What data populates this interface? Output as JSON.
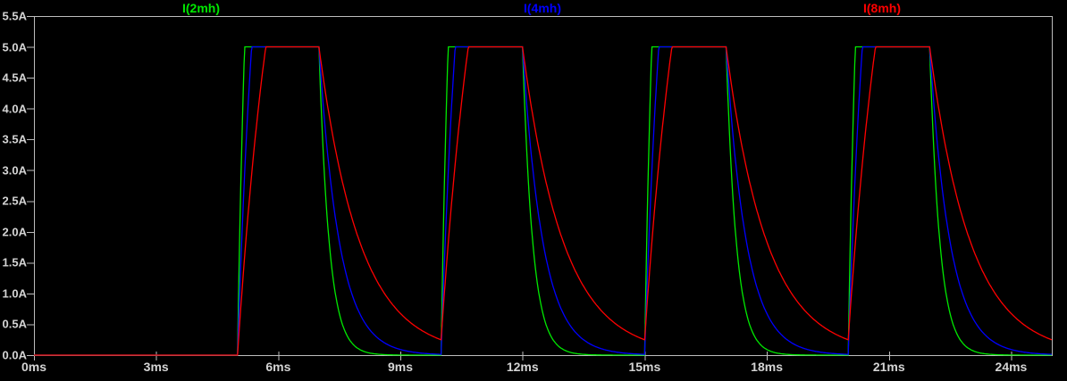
{
  "window": {
    "background": "#000000"
  },
  "legend": {
    "items": [
      {
        "label": "I(2mh)",
        "color": "#00e800",
        "x_center": 225
      },
      {
        "label": "I(4mh)",
        "color": "#0000ff",
        "x_center": 607
      },
      {
        "label": "I(8mh)",
        "color": "#ff0000",
        "x_center": 987
      }
    ]
  },
  "axes": {
    "frame_color": "#bcbcbc",
    "tick_color": "#bcbcbc",
    "label_color": "#d4d4d4",
    "x_unit": "ms",
    "y_unit": "A",
    "x_ticks": [
      {
        "value": 0,
        "label": "0ms"
      },
      {
        "value": 3,
        "label": "3ms"
      },
      {
        "value": 6,
        "label": "6ms"
      },
      {
        "value": 9,
        "label": "9ms"
      },
      {
        "value": 12,
        "label": "12ms"
      },
      {
        "value": 15,
        "label": "15ms"
      },
      {
        "value": 18,
        "label": "18ms"
      },
      {
        "value": 21,
        "label": "21ms"
      },
      {
        "value": 24,
        "label": "24ms"
      }
    ],
    "y_ticks": [
      {
        "value": 0.0,
        "label": "0.0A"
      },
      {
        "value": 0.5,
        "label": "0.5A"
      },
      {
        "value": 1.0,
        "label": "1.0A"
      },
      {
        "value": 1.5,
        "label": "1.5A"
      },
      {
        "value": 2.0,
        "label": "2.0A"
      },
      {
        "value": 2.5,
        "label": "2.5A"
      },
      {
        "value": 3.0,
        "label": "3.0A"
      },
      {
        "value": 3.5,
        "label": "3.5A"
      },
      {
        "value": 4.0,
        "label": "4.0A"
      },
      {
        "value": 4.5,
        "label": "4.5A"
      },
      {
        "value": 5.0,
        "label": "5.0A"
      },
      {
        "value": 5.5,
        "label": "5.5A"
      }
    ]
  },
  "chart_data": {
    "type": "line",
    "title": "",
    "xlabel": "",
    "ylabel": "",
    "xlim": [
      0,
      25
    ],
    "ylim": [
      0,
      5.5
    ],
    "grid": false,
    "legend_position": "top",
    "waveform_model": {
      "description": "Periodic pulsed inductor currents: off at 0A until first pulse; during ON the current rises exponentially toward rise_target_A with time constant tau and clamps at amplitude_A; during OFF it decays exponentially to 0 with the same tau.",
      "amplitude_A": 5.0,
      "rise_target_A": 10.0,
      "pulse_on_ms": [
        5,
        10,
        15,
        20
      ],
      "pulse_off_ms": [
        7,
        12,
        17,
        22
      ],
      "t_end_ms": 25,
      "sample_step_ms": 0.02
    },
    "series": [
      {
        "name": "I(2mh)",
        "color": "#00e800",
        "tau_ms": 0.25,
        "keypoints_ms_A": [
          [
            0,
            0
          ],
          [
            5,
            0
          ],
          [
            5.17,
            5
          ],
          [
            7,
            5
          ],
          [
            7.25,
            1.84
          ],
          [
            7.5,
            0.68
          ],
          [
            7.75,
            0.25
          ],
          [
            8,
            0.09
          ],
          [
            8.5,
            0.01
          ],
          [
            10,
            0
          ],
          [
            10.17,
            5
          ],
          [
            12,
            5
          ],
          [
            12.5,
            0.68
          ],
          [
            13,
            0.09
          ],
          [
            15,
            0
          ],
          [
            15.17,
            5
          ],
          [
            17,
            5
          ],
          [
            17.5,
            0.68
          ],
          [
            18,
            0.09
          ],
          [
            20,
            0
          ],
          [
            20.17,
            5
          ],
          [
            22,
            5
          ],
          [
            22.5,
            0.68
          ],
          [
            23,
            0.09
          ],
          [
            25,
            0
          ]
        ]
      },
      {
        "name": "I(4mh)",
        "color": "#0000ff",
        "tau_ms": 0.5,
        "keypoints_ms_A": [
          [
            0,
            0
          ],
          [
            5,
            0
          ],
          [
            5.35,
            5
          ],
          [
            7,
            5
          ],
          [
            7.5,
            1.84
          ],
          [
            8,
            0.68
          ],
          [
            8.5,
            0.25
          ],
          [
            9,
            0.09
          ],
          [
            10,
            0.01
          ],
          [
            10.35,
            5
          ],
          [
            12,
            5
          ],
          [
            13,
            0.68
          ],
          [
            14,
            0.09
          ],
          [
            15,
            0.01
          ],
          [
            15.35,
            5
          ],
          [
            17,
            5
          ],
          [
            18,
            0.68
          ],
          [
            19,
            0.09
          ],
          [
            20,
            0.01
          ],
          [
            20.35,
            5
          ],
          [
            22,
            5
          ],
          [
            23,
            0.68
          ],
          [
            24,
            0.09
          ],
          [
            25,
            0.01
          ]
        ]
      },
      {
        "name": "I(8mh)",
        "color": "#ff0000",
        "tau_ms": 1.0,
        "keypoints_ms_A": [
          [
            0,
            0
          ],
          [
            5,
            0
          ],
          [
            5.69,
            5
          ],
          [
            7,
            5
          ],
          [
            8,
            1.84
          ],
          [
            9,
            0.68
          ],
          [
            10,
            0.25
          ],
          [
            10.67,
            5
          ],
          [
            12,
            5
          ],
          [
            13,
            1.84
          ],
          [
            14,
            0.68
          ],
          [
            15,
            0.25
          ],
          [
            15.67,
            5
          ],
          [
            17,
            5
          ],
          [
            18,
            1.84
          ],
          [
            19,
            0.68
          ],
          [
            20,
            0.25
          ],
          [
            20.67,
            5
          ],
          [
            22,
            5
          ],
          [
            23,
            1.84
          ],
          [
            24,
            0.68
          ],
          [
            25,
            0.25
          ]
        ]
      }
    ]
  }
}
